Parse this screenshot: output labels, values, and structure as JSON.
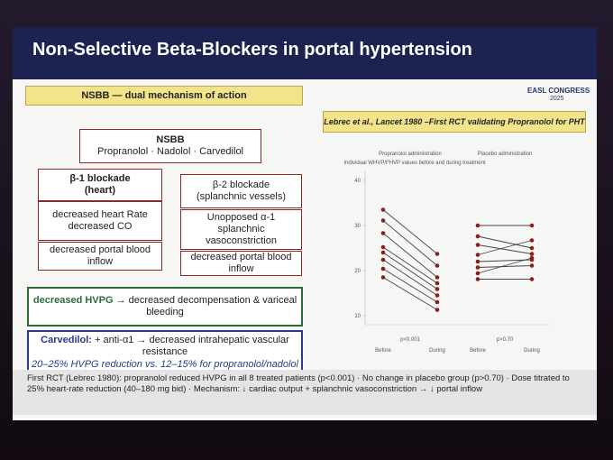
{
  "header": {
    "title": "Non-Selective Beta-Blockers in portal hypertension",
    "logo": "EASL CONGRESS",
    "logo_year": "2025"
  },
  "left": {
    "heading": "NSBB — dual mechanism of action",
    "root": {
      "title": "NSBB",
      "drugs": "Propranolol · Nadolol · Carvedilol"
    },
    "beta1": {
      "title": "β-1 blockade",
      "subtitle": "(heart)",
      "effect": "decreased heart Rate decreased CO",
      "result": "decreased portal blood inflow"
    },
    "beta2": {
      "title": "β-2 blockade",
      "subtitle": "(splanchnic vessels)",
      "effect": "Unopposed α-1 splanchnic vasoconstriction",
      "result": "decreased portal blood inflow"
    },
    "hvpg": {
      "lead": "decreased HVPG",
      "text": "→ decreased decompensation & variceal bleeding"
    },
    "carvedilol": {
      "lead": "Carvedilol:",
      "text": "+ anti-α1 → decreased intrahepatic vascular resistance",
      "note": "20–25% HVPG reduction vs. 12–15% for propranolol/nadolol"
    }
  },
  "right": {
    "heading": "Lebrec et al., Lancet 1980 –First RCT validating Propranolol for PHT",
    "chart": {
      "type": "line",
      "subtitle": "Individual WHVP/FHVP values before and during treatment",
      "ylim": [
        8,
        42
      ],
      "yticks": [
        10,
        20,
        30,
        40
      ],
      "x_labels": [
        "Before",
        "During"
      ],
      "groups": [
        {
          "name": "Propranolol administration",
          "p_value": "p<0.001",
          "before": [
            33.5,
            31.1,
            28.3,
            25.2,
            24.0,
            22.4,
            20.4,
            18.5
          ],
          "during": [
            23.7,
            21.1,
            18.5,
            17.2,
            15.9,
            14.5,
            13.0,
            11.3
          ]
        },
        {
          "name": "Placebo administration",
          "p_value": "p>0.70",
          "before": [
            30,
            27.6,
            25.7,
            23.5,
            22,
            20.7,
            19.4,
            18.1
          ],
          "during": [
            30,
            25,
            23.7,
            26.7,
            22.4,
            21.1,
            22.8,
            18.1
          ]
        }
      ]
    }
  },
  "footer": "First RCT (Lebrec 1980): propranolol reduced HVPG in all 8 treated patients (p<0.001) · No change in placebo group (p>0.70) · Dose titrated to 25% heart-rate reduction (40–180 mg bid) · Mechanism: ↓ cardiac output + splanchnic vasoconstriction → ↓ portal inflow"
}
